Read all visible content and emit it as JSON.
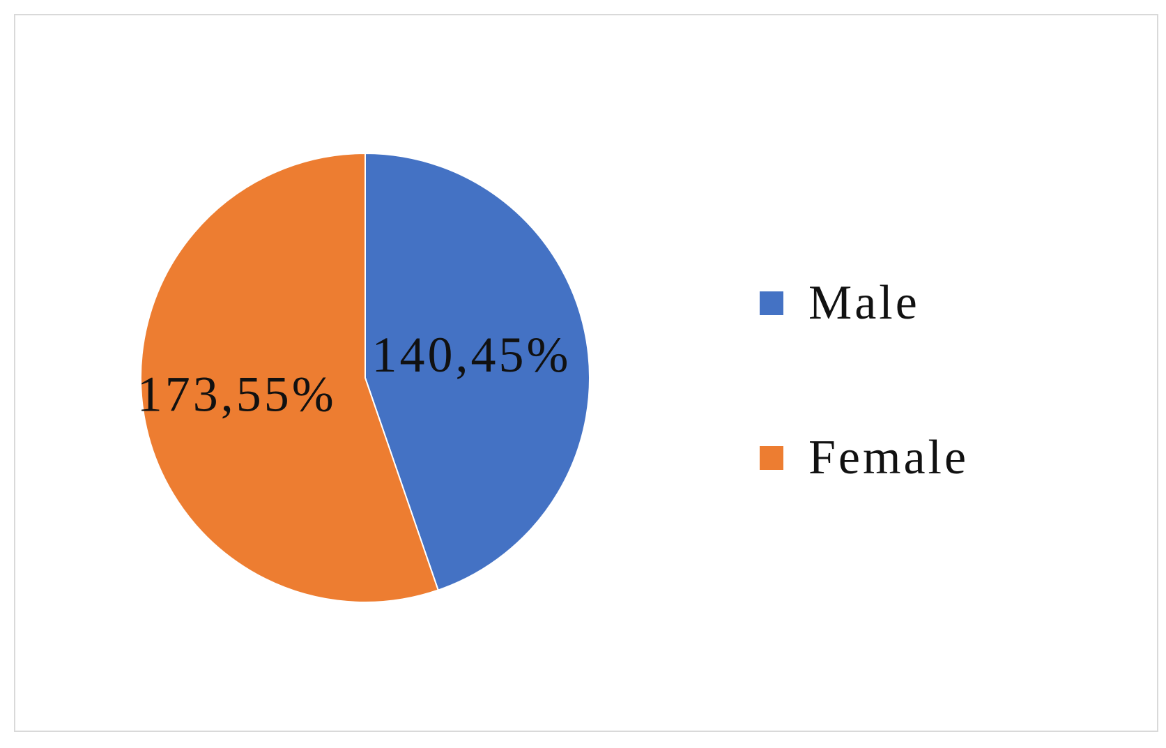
{
  "chart_data": {
    "type": "pie",
    "title": "",
    "slices": [
      {
        "name": "Male",
        "value": 140,
        "percent": 45,
        "label": "140,45%",
        "color": "#4472C4"
      },
      {
        "name": "Female",
        "value": 173,
        "percent": 55,
        "label": "173,55%",
        "color": "#ED7D31"
      }
    ],
    "legend": {
      "placement": "right",
      "entries": [
        "Male",
        "Female"
      ]
    }
  }
}
